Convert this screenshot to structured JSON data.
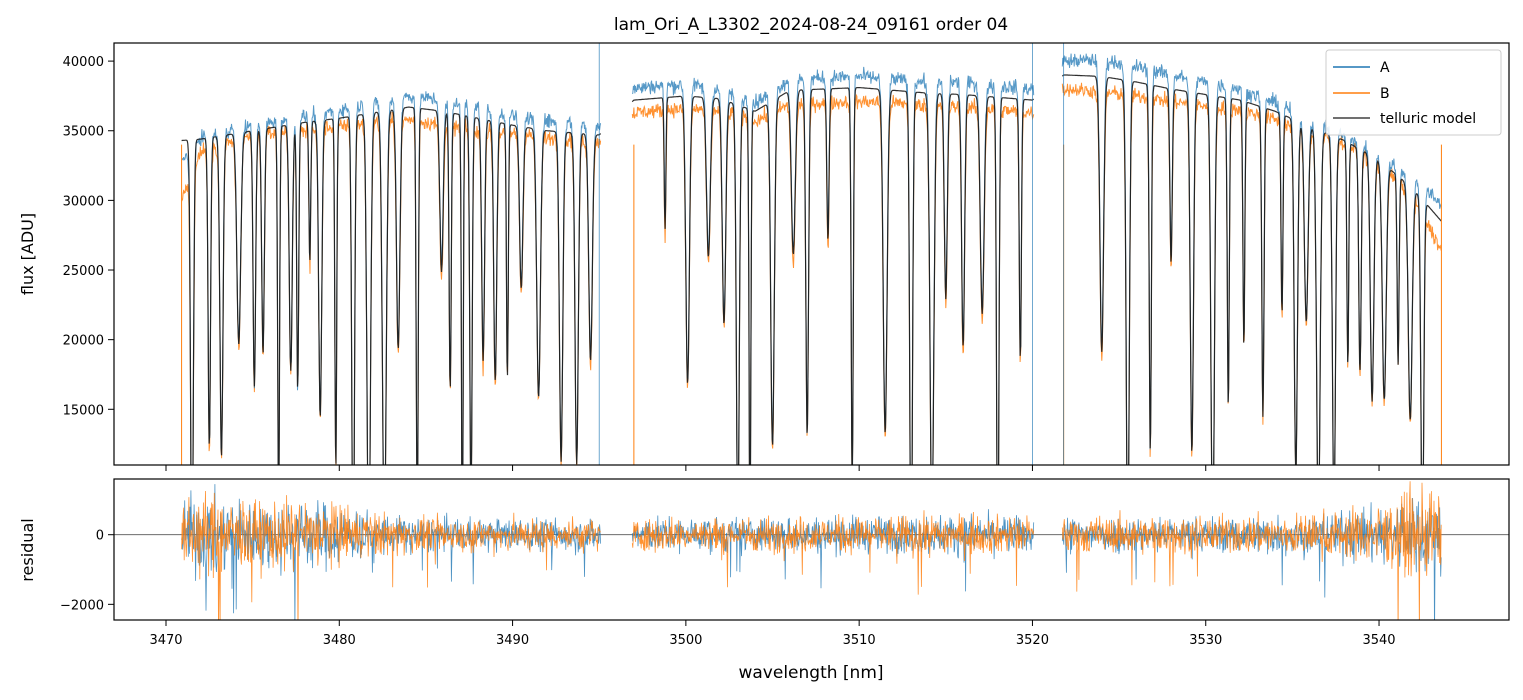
{
  "chart_data": {
    "type": "line",
    "title": "lam_Ori_A_L3302_2024-08-24_09161  order 04",
    "xlabel": "wavelength [nm]",
    "xlim": [
      3467,
      3547.5
    ],
    "x_ticks": [
      3470,
      3480,
      3490,
      3500,
      3510,
      3520,
      3530,
      3540
    ],
    "x_tick_labels": [
      "3470",
      "3480",
      "3490",
      "3500",
      "3510",
      "3520",
      "3530",
      "3540"
    ],
    "panels": [
      {
        "name": "flux",
        "ylabel": "flux [ADU]",
        "ylim": [
          11000,
          41300
        ],
        "y_ticks": [
          15000,
          20000,
          25000,
          30000,
          35000,
          40000
        ],
        "y_tick_labels": [
          "15000",
          "20000",
          "25000",
          "30000",
          "35000",
          "40000"
        ],
        "legend": {
          "position": "upper-right",
          "entries": [
            "A",
            "B",
            "telluric model"
          ]
        },
        "series": [
          {
            "name": "A",
            "color": "#1f77b4",
            "x": [
              3470.9,
              3472.0,
              3474.0,
              3476.0,
              3478.0,
              3480.0,
              3482.0,
              3484.0,
              3486.0,
              3488.0,
              3490.0,
              3492.0,
              3494.0,
              3495.0,
              3497.0,
              3498.0,
              3500.0,
              3502.0,
              3504.0,
              3506.0,
              3508.0,
              3510.0,
              3512.0,
              3514.0,
              3516.0,
              3518.0,
              3520.0,
              3521.8,
              3522.0,
              3524.0,
              3526.0,
              3528.0,
              3530.0,
              3532.0,
              3534.0,
              3536.0,
              3538.0,
              3540.0,
              3542.0,
              3543.6
            ],
            "continuum": [
              32700,
              34500,
              35200,
              35600,
              36000,
              36500,
              37000,
              37500,
              37200,
              36700,
              36100,
              35700,
              35500,
              35400,
              38000,
              38200,
              38300,
              38000,
              37000,
              38700,
              38800,
              38900,
              38700,
              38500,
              38500,
              38200,
              38000,
              40000,
              40000,
              40100,
              39600,
              39000,
              38500,
              38000,
              37000,
              35800,
              34600,
              33300,
              31500,
              29700
            ]
          },
          {
            "name": "B",
            "color": "#ff7f0e",
            "x": [
              3470.9,
              3472.0,
              3474.0,
              3476.0,
              3478.0,
              3480.0,
              3482.0,
              3484.0,
              3486.0,
              3488.0,
              3490.0,
              3492.0,
              3494.0,
              3495.0,
              3497.0,
              3498.0,
              3500.0,
              3502.0,
              3504.0,
              3506.0,
              3508.0,
              3510.0,
              3512.0,
              3514.0,
              3516.0,
              3518.0,
              3520.0,
              3521.8,
              3522.0,
              3524.0,
              3526.0,
              3528.0,
              3530.0,
              3532.0,
              3534.0,
              3536.0,
              3538.0,
              3540.0,
              3542.0,
              3543.6
            ],
            "continuum": [
              30000,
              33500,
              34300,
              34800,
              35100,
              35300,
              35600,
              35800,
              35400,
              35000,
              34800,
              34500,
              34300,
              34200,
              36300,
              36400,
              36600,
              36500,
              35700,
              36900,
              37000,
              37100,
              37000,
              36800,
              36700,
              36500,
              36300,
              38000,
              38000,
              37800,
              37500,
              37100,
              36800,
              36500,
              35800,
              34900,
              34100,
              32600,
              30300,
              26400
            ]
          },
          {
            "name": "telluric model",
            "color": "#404040",
            "x": [
              3470.9,
              3472.0,
              3474.0,
              3476.0,
              3478.0,
              3480.0,
              3482.0,
              3484.0,
              3486.0,
              3488.0,
              3490.0,
              3492.0,
              3494.0,
              3495.0,
              3497.0,
              3498.0,
              3500.0,
              3502.0,
              3504.0,
              3506.0,
              3508.0,
              3510.0,
              3512.0,
              3514.0,
              3516.0,
              3518.0,
              3520.0,
              3521.8,
              3522.0,
              3524.0,
              3526.0,
              3528.0,
              3530.0,
              3532.0,
              3534.0,
              3536.0,
              3538.0,
              3540.0,
              3542.0,
              3543.6
            ],
            "continuum": [
              34300,
              34400,
              34800,
              35200,
              35600,
              35900,
              36300,
              36700,
              36400,
              35900,
              35400,
              35000,
              34800,
              34700,
              37200,
              37300,
              37500,
              37300,
              36400,
              37900,
              38000,
              38100,
              37900,
              37700,
              37600,
              37400,
              37200,
              39000,
              39000,
              38900,
              38500,
              38000,
              37600,
              37200,
              36400,
              35300,
              34300,
              32900,
              30800,
              28500
            ]
          }
        ],
        "absorption_lines_nm": [
          3471.5,
          3472.5,
          3473.2,
          3474.2,
          3475.1,
          3475.6,
          3476.5,
          3477.2,
          3477.6,
          3478.3,
          3478.9,
          3479.8,
          3480.8,
          3481.7,
          3482.6,
          3483.4,
          3484.5,
          3485.9,
          3486.4,
          3487.1,
          3487.6,
          3488.3,
          3489.0,
          3489.7,
          3490.5,
          3491.5,
          3492.8,
          3493.7,
          3494.5,
          3498.8,
          3500.1,
          3501.3,
          3502.2,
          3503.0,
          3503.7,
          3505.0,
          3506.2,
          3507.0,
          3508.2,
          3509.6,
          3511.5,
          3513.0,
          3514.2,
          3515.0,
          3516.0,
          3517.1,
          3518.0,
          3519.3,
          3524.0,
          3525.5,
          3526.8,
          3528.0,
          3529.2,
          3530.4,
          3531.3,
          3532.2,
          3533.3,
          3534.4,
          3535.2,
          3535.8,
          3536.5,
          3537.4,
          3538.2,
          3538.9,
          3539.6,
          3540.3,
          3541.1,
          3541.8,
          3542.5
        ],
        "data_gaps_nm": [
          [
            3495.1,
            3496.9
          ],
          [
            3520.1,
            3521.7
          ]
        ],
        "spikes_nm": [
          3495.0,
          3520.0,
          3521.8
        ]
      },
      {
        "name": "residual",
        "ylabel": "residual",
        "ylim": [
          -2450,
          1600
        ],
        "y_ticks": [
          -2000,
          0
        ],
        "y_tick_labels": [
          "−2000",
          "0"
        ],
        "zero_line": true,
        "series": [
          {
            "name": "A",
            "color": "#1f77b4"
          },
          {
            "name": "B",
            "color": "#ff7f0e"
          }
        ],
        "noise_envelope": {
          "x": [
            3470.9,
            3472.0,
            3474.0,
            3476.0,
            3478.0,
            3480.0,
            3482.0,
            3484.0,
            3486.0,
            3490.0,
            3495.0,
            3497.0,
            3505.0,
            3510.0,
            3515.0,
            3520.0,
            3522.0,
            3530.0,
            3535.0,
            3538.0,
            3540.0,
            3542.0,
            3543.6
          ],
          "std": [
            900,
            1100,
            1000,
            900,
            1000,
            800,
            600,
            500,
            450,
            450,
            450,
            450,
            480,
            480,
            550,
            480,
            500,
            480,
            550,
            650,
            800,
            1100,
            1200
          ]
        }
      }
    ]
  }
}
